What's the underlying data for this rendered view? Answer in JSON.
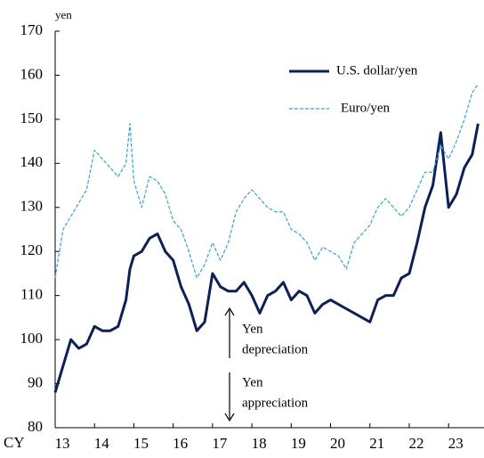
{
  "chart_data": {
    "type": "line",
    "y_unit": "yen",
    "x_label": "CY",
    "x": [
      13.0,
      13.2,
      13.4,
      13.6,
      13.8,
      14.0,
      14.2,
      14.4,
      14.6,
      14.8,
      14.9,
      15.0,
      15.2,
      15.4,
      15.6,
      15.8,
      16.0,
      16.2,
      16.4,
      16.6,
      16.8,
      17.0,
      17.2,
      17.4,
      17.6,
      17.8,
      18.0,
      18.2,
      18.4,
      18.6,
      18.8,
      19.0,
      19.2,
      19.4,
      19.6,
      19.8,
      20.0,
      20.2,
      20.4,
      20.6,
      20.8,
      21.0,
      21.2,
      21.4,
      21.6,
      21.8,
      22.0,
      22.2,
      22.4,
      22.6,
      22.8,
      23.0,
      23.2,
      23.4,
      23.6,
      23.75
    ],
    "series": [
      {
        "name": "U.S. dollar/yen",
        "color": "#0b1f5e",
        "dashed": false,
        "values": [
          88,
          94,
          100,
          98,
          99,
          103,
          102,
          102,
          103,
          109,
          116,
          119,
          120,
          123,
          124,
          120,
          118,
          112,
          108,
          102,
          104,
          115,
          112,
          111,
          111,
          113,
          110,
          106,
          110,
          111,
          113,
          109,
          111,
          110,
          106,
          108,
          109,
          108,
          107,
          106,
          105,
          104,
          109,
          110,
          110,
          114,
          115,
          122,
          130,
          135,
          147,
          130,
          133,
          139,
          142,
          149
        ]
      },
      {
        "name": "Euro/yen",
        "color": "#2aa8e0",
        "dashed": true,
        "values": [
          114,
          125,
          128,
          131,
          134,
          143,
          141,
          139,
          137,
          140,
          149,
          136,
          130,
          137,
          136,
          133,
          127,
          125,
          120,
          114,
          117,
          122,
          118,
          122,
          129,
          132,
          134,
          132,
          130,
          129,
          129,
          125,
          124,
          122,
          118,
          121,
          120,
          119,
          116,
          122,
          124,
          126,
          130,
          132,
          130,
          128,
          130,
          134,
          138,
          138,
          144,
          141,
          145,
          150,
          156,
          158
        ]
      }
    ],
    "xlim": [
      13,
      23.9
    ],
    "xticks": [
      13,
      14,
      15,
      16,
      17,
      18,
      19,
      20,
      21,
      22,
      23
    ],
    "ylim": [
      80,
      170
    ],
    "yticks": [
      80,
      90,
      100,
      110,
      120,
      130,
      140,
      150,
      160,
      170
    ],
    "annotations": [
      [
        "Yen",
        "depreciation"
      ],
      [
        "Yen",
        "appreciation"
      ]
    ]
  }
}
